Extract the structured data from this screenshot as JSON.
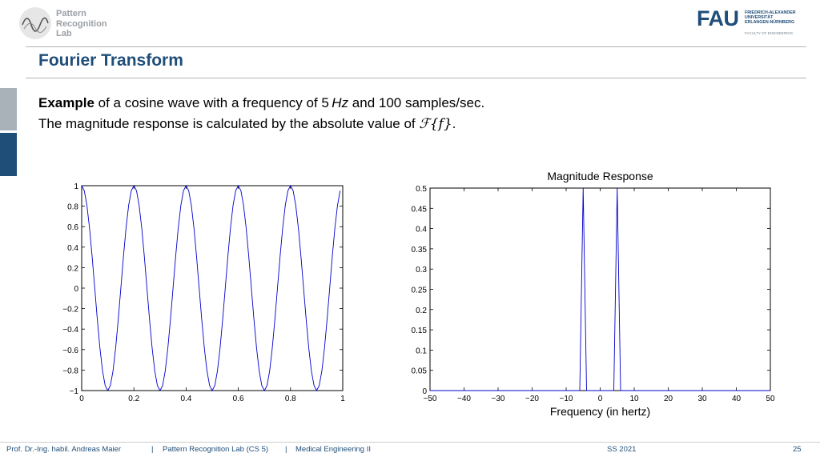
{
  "logo": {
    "line1": "Pattern",
    "line2": "Recognition",
    "line3": "Lab"
  },
  "fau": {
    "name": "FAU",
    "sub1": "FRIEDRICH-ALEXANDER",
    "sub2": "UNIVERSITÄT",
    "sub3": "ERLANGEN-NÜRNBERG",
    "faculty": "FACULTY OF ENGINEERING"
  },
  "slide": {
    "title": "Fourier Transform",
    "line1_bold": "Example",
    "line1_a": " of a cosine wave with a frequency of 5",
    "line1_unit": "Hz",
    "line1_b": " and 100 samples/sec.",
    "line2_a": "The magnitude response is calculated by the absolute value of ",
    "line2_math": "ℱ{f}",
    "line2_b": "."
  },
  "footer": {
    "author": "Prof. Dr.-Ing. habil. Andreas Maier",
    "sep1": "|",
    "lab": "Pattern Recognition Lab (CS 5)",
    "sep2": "|",
    "course": "Medical Engineering II",
    "semester": "SS 2021",
    "page": "25"
  },
  "colors": {
    "accent": "#1f4e79",
    "line": "#0000cc"
  },
  "chart_data": [
    {
      "type": "line",
      "title": "",
      "xlabel": "",
      "ylabel": "",
      "xlim": [
        0,
        1
      ],
      "ylim": [
        -1,
        1
      ],
      "xticks": [
        "0",
        "0.2",
        "0.4",
        "0.6",
        "0.8",
        "1"
      ],
      "yticks": [
        "1",
        "0.8",
        "0.6",
        "0.4",
        "0.2",
        "0",
        "−0.2",
        "−0.4",
        "−0.6",
        "−0.8",
        "−1"
      ],
      "series": [
        {
          "function": "cos(2*pi*5*t)",
          "frequency_hz": 5,
          "samples_per_sec": 100,
          "t_range": [
            0,
            0.99
          ]
        }
      ]
    },
    {
      "type": "line",
      "title": "Magnitude Response",
      "xlabel": "Frequency (in hertz)",
      "ylabel": "",
      "xlim": [
        -50,
        50
      ],
      "ylim": [
        0,
        0.5
      ],
      "xticks": [
        "−50",
        "−40",
        "−30",
        "−20",
        "−10",
        "0",
        "10",
        "20",
        "30",
        "40",
        "50"
      ],
      "yticks": [
        "0.5",
        "0.45",
        "0.4",
        "0.35",
        "0.3",
        "0.25",
        "0.2",
        "0.15",
        "0.1",
        "0.05",
        "0"
      ],
      "series": [
        {
          "x": [
            -50,
            -6,
            -5,
            -4,
            4,
            5,
            6,
            50
          ],
          "y": [
            0,
            0,
            0.5,
            0,
            0,
            0.5,
            0,
            0
          ]
        }
      ]
    }
  ]
}
